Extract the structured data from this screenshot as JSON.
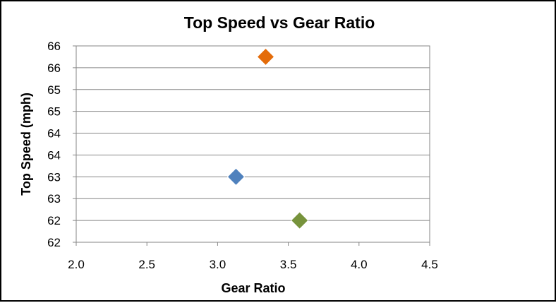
{
  "chart_data": {
    "type": "scatter",
    "title": "Top Speed vs  Gear Ratio",
    "xlabel": "Gear Ratio",
    "ylabel": "Top Speed (mph)",
    "xlim": [
      2.0,
      4.5
    ],
    "ylim": [
      61.5,
      66.0
    ],
    "x_ticks": [
      2.0,
      2.5,
      3.0,
      3.5,
      4.0,
      4.5
    ],
    "x_tick_labels": [
      "2.0",
      "2.5",
      "3.0",
      "3.5",
      "4.0",
      "4.5"
    ],
    "y_ticks": [
      61.5,
      62.0,
      62.5,
      63.0,
      63.5,
      64.0,
      64.5,
      65.0,
      65.5,
      66.0
    ],
    "y_tick_labels": [
      "62",
      "62",
      "63",
      "63",
      "64",
      "64",
      "65",
      "65",
      "66",
      "66"
    ],
    "grid": "horizontal",
    "legend": "none",
    "marker": "diamond",
    "points": [
      {
        "x": 3.13,
        "y": 63.0,
        "color": "#4F81BD"
      },
      {
        "x": 3.34,
        "y": 65.75,
        "color": "#E46C0A"
      },
      {
        "x": 3.58,
        "y": 62.0,
        "color": "#77933C"
      }
    ]
  }
}
